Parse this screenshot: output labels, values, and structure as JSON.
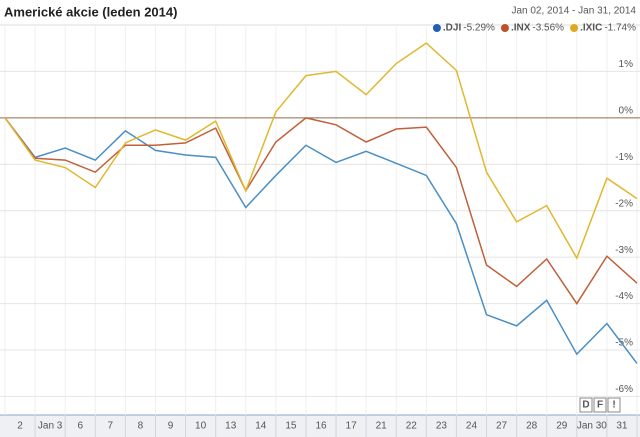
{
  "chart_data": {
    "type": "line",
    "title": "Americké akcie (leden 2014)",
    "date_range": "Jan 02, 2014 - Jan 31, 2014",
    "categories": [
      null,
      "2",
      "Jan 3",
      "6",
      "7",
      "8",
      "9",
      "10",
      "13",
      "14",
      "15",
      "16",
      "17",
      "21",
      "22",
      "23",
      "24",
      "27",
      "28",
      "29",
      "Jan 30",
      "31"
    ],
    "series": [
      {
        "name": ".DJI",
        "change_label": "-5.29%",
        "color": "#4a8fc4",
        "legend_color": "#1f5fb5",
        "values": [
          0,
          -0.85,
          -0.65,
          -0.91,
          -0.28,
          -0.7,
          -0.8,
          -0.85,
          -1.93,
          -1.24,
          -0.59,
          -0.96,
          -0.72,
          -0.98,
          -1.24,
          -2.28,
          -4.24,
          -4.48,
          -3.93,
          -5.09,
          -4.43,
          -5.29
        ]
      },
      {
        "name": ".INX",
        "change_label": "-3.56%",
        "color": "#c0603a",
        "legend_color": "#c0502a",
        "values": [
          0,
          -0.87,
          -0.91,
          -1.17,
          -0.59,
          -0.59,
          -0.54,
          -0.22,
          -1.57,
          -0.52,
          0,
          -0.15,
          -0.52,
          -0.24,
          -0.2,
          -1.07,
          -3.17,
          -3.63,
          -3.04,
          -4.0,
          -2.98,
          -3.56
        ]
      },
      {
        "name": ".IXIC",
        "change_label": "-1.74%",
        "color": "#e0b830",
        "legend_color": "#e0a820",
        "values": [
          0,
          -0.91,
          -1.07,
          -1.5,
          -0.54,
          -0.26,
          -0.48,
          -0.07,
          -1.57,
          0.13,
          0.91,
          1.0,
          0.5,
          1.17,
          1.61,
          1.02,
          -1.17,
          -2.24,
          -1.89,
          -3.02,
          -1.3,
          -1.74
        ]
      }
    ],
    "ylim": [
      -6.4,
      2
    ],
    "yticks": [
      {
        "value": 1,
        "label": "1%"
      },
      {
        "value": 0,
        "label": "0%"
      },
      {
        "value": -1,
        "label": "-1%"
      },
      {
        "value": -2,
        "label": "-2%"
      },
      {
        "value": -3,
        "label": "-3%"
      },
      {
        "value": -4,
        "label": "-4%"
      },
      {
        "value": -5,
        "label": "-5%"
      },
      {
        "value": -6,
        "label": "-6%"
      }
    ],
    "grid": true,
    "buttons": [
      "D",
      "F",
      "!"
    ]
  }
}
